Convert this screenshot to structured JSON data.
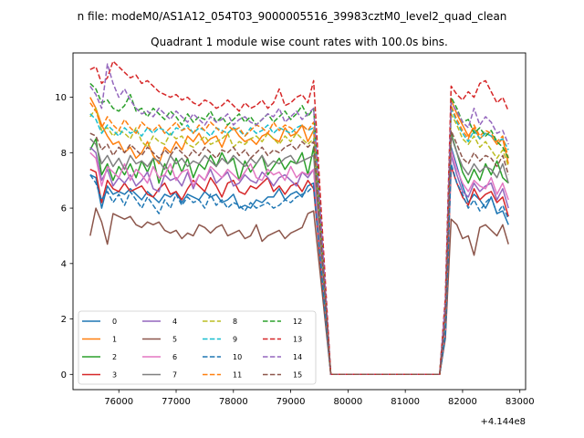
{
  "chart_data": {
    "type": "line",
    "suptitle": "n file: modeM0/AS1A12_054T03_9000005516_39983cztM0_level2_quad_clean",
    "title": "Quadrant 1 module wise count rates with 100.0s bins.",
    "xlabel": "",
    "ylabel": "",
    "offset_label": "+4.144e8",
    "xlim": [
      75200,
      83100
    ],
    "ylim": [
      -0.55,
      11.6
    ],
    "xticks": [
      76000,
      77000,
      78000,
      79000,
      80000,
      81000,
      82000,
      83000
    ],
    "yticks": [
      0,
      2,
      4,
      6,
      8,
      10
    ],
    "grid": false,
    "legend_position": "lower-left",
    "x_start": 75500,
    "x_step": 100,
    "gap_x": [
      79700,
      81600
    ],
    "series_colors": [
      "#1f77b4",
      "#ff7f0e",
      "#2ca02c",
      "#d62728",
      "#9467bd",
      "#8c564b",
      "#e377c2",
      "#7f7f7f",
      "#bcbd22",
      "#17becf",
      "#1f77b4",
      "#ff7f0e",
      "#2ca02c",
      "#d62728",
      "#9467bd",
      "#8c564b"
    ],
    "series": [
      {
        "name": "0",
        "style": "solid",
        "segA": [
          7.2,
          7.1,
          6.0,
          6.8,
          6.5,
          6.6,
          6.5,
          6.7,
          6.5,
          6.3,
          6.6,
          6.4,
          6.2,
          6.5,
          6.4,
          6.6,
          6.2,
          6.5,
          6.4,
          6.3,
          6.6,
          6.4,
          6.5,
          6.2,
          6.3,
          6.5,
          6.0,
          6.1,
          6.0,
          6.3,
          6.2,
          6.4,
          6.4,
          6.7,
          6.3,
          6.5,
          6.6,
          6.4,
          6.8,
          6.9
        ],
        "segB": [
          1.4,
          8.2,
          7.5,
          6.8,
          6.2,
          6.5,
          6.3,
          6.0,
          6.4,
          5.8,
          5.9,
          5.4
        ]
      },
      {
        "name": "1",
        "style": "solid",
        "segA": [
          10.0,
          9.6,
          9.0,
          8.6,
          8.3,
          8.4,
          8.0,
          8.2,
          7.8,
          8.0,
          8.4,
          7.9,
          7.6,
          8.2,
          8.0,
          8.4,
          8.1,
          8.6,
          8.4,
          8.7,
          8.3,
          8.5,
          8.6,
          8.2,
          8.7,
          8.9,
          8.6,
          8.4,
          8.5,
          8.3,
          8.6,
          8.7,
          8.5,
          8.4,
          8.9,
          8.6,
          8.7,
          9.0,
          8.4,
          8.8
        ],
        "segB": [
          2.2,
          9.9,
          9.4,
          9.0,
          8.6,
          8.9,
          8.5,
          8.7,
          8.6,
          8.3,
          8.5,
          7.6
        ]
      },
      {
        "name": "2",
        "style": "solid",
        "segA": [
          8.1,
          8.5,
          7.2,
          7.6,
          7.0,
          7.5,
          7.2,
          7.6,
          7.1,
          7.7,
          7.3,
          7.8,
          6.9,
          7.6,
          7.2,
          7.8,
          7.3,
          7.8,
          7.1,
          7.6,
          7.4,
          7.9,
          7.5,
          8.0,
          7.6,
          7.8,
          7.0,
          7.7,
          7.3,
          7.6,
          7.9,
          7.2,
          7.5,
          7.8,
          7.4,
          7.7,
          7.6,
          8.0,
          7.2,
          8.2
        ],
        "segB": [
          1.8,
          8.7,
          8.0,
          7.3,
          6.9,
          7.4,
          7.0,
          7.6,
          7.2,
          7.7,
          7.1,
          6.9
        ]
      },
      {
        "name": "3",
        "style": "solid",
        "segA": [
          7.4,
          7.3,
          6.2,
          7.0,
          6.7,
          6.6,
          6.9,
          6.6,
          6.7,
          6.8,
          6.5,
          6.4,
          6.7,
          6.9,
          6.5,
          6.6,
          6.3,
          6.7,
          7.0,
          6.8,
          6.6,
          7.1,
          6.8,
          6.4,
          6.9,
          7.0,
          6.6,
          6.5,
          6.8,
          6.7,
          6.9,
          7.1,
          6.6,
          6.8,
          6.5,
          6.8,
          6.9,
          6.6,
          7.0,
          6.7
        ],
        "segB": [
          1.5,
          7.5,
          6.9,
          6.4,
          6.1,
          6.7,
          6.3,
          6.5,
          6.6,
          6.2,
          6.4,
          5.7
        ]
      },
      {
        "name": "4",
        "style": "solid",
        "segA": [
          8.2,
          8.0,
          7.0,
          7.4,
          6.8,
          7.1,
          6.9,
          7.2,
          6.8,
          7.0,
          7.3,
          6.7,
          6.6,
          7.2,
          7.0,
          7.1,
          6.8,
          7.3,
          6.7,
          7.2,
          7.0,
          7.4,
          6.9,
          7.1,
          7.3,
          6.8,
          6.9,
          7.2,
          7.0,
          6.9,
          7.3,
          7.1,
          6.8,
          7.1,
          7.2,
          7.0,
          6.8,
          7.3,
          7.1,
          7.4
        ],
        "segB": [
          1.7,
          7.9,
          7.2,
          6.6,
          6.4,
          6.9,
          6.6,
          6.8,
          6.9,
          6.3,
          6.7,
          6.0
        ]
      },
      {
        "name": "5",
        "style": "solid",
        "segA": [
          5.0,
          6.0,
          5.5,
          4.7,
          5.8,
          5.7,
          5.6,
          5.7,
          5.4,
          5.3,
          5.5,
          5.4,
          5.5,
          5.2,
          5.1,
          5.2,
          4.9,
          5.1,
          5.0,
          5.4,
          5.3,
          5.1,
          5.3,
          5.4,
          5.0,
          5.1,
          5.2,
          4.9,
          5.0,
          5.4,
          4.8,
          5.0,
          5.1,
          5.2,
          4.9,
          5.1,
          5.2,
          5.3,
          5.8,
          5.9
        ],
        "segB": [
          1.3,
          5.6,
          5.4,
          4.9,
          5.0,
          4.3,
          5.3,
          5.4,
          5.2,
          5.0,
          5.4,
          4.7
        ]
      },
      {
        "name": "6",
        "style": "solid",
        "segA": [
          8.0,
          7.8,
          6.8,
          7.5,
          7.3,
          7.1,
          7.6,
          7.0,
          7.4,
          7.2,
          6.9,
          7.5,
          7.1,
          7.2,
          7.6,
          7.0,
          7.3,
          7.4,
          6.8,
          7.2,
          7.0,
          7.5,
          7.3,
          7.1,
          7.4,
          7.2,
          7.0,
          7.3,
          7.6,
          7.1,
          7.0,
          7.4,
          7.2,
          7.3,
          7.0,
          7.5,
          7.1,
          7.3,
          7.2,
          7.4
        ],
        "segB": [
          1.6,
          8.1,
          7.4,
          6.9,
          6.6,
          7.0,
          6.8,
          6.7,
          7.1,
          6.5,
          6.9,
          6.3
        ]
      },
      {
        "name": "7",
        "style": "solid",
        "segA": [
          8.5,
          8.3,
          7.6,
          7.9,
          7.5,
          7.8,
          7.4,
          7.9,
          7.6,
          7.7,
          7.5,
          7.8,
          7.7,
          7.4,
          7.9,
          7.6,
          7.8,
          7.5,
          7.7,
          7.6,
          7.9,
          7.7,
          7.5,
          7.8,
          7.6,
          7.9,
          7.7,
          7.5,
          7.8,
          7.6,
          7.9,
          7.5,
          7.7,
          7.6,
          7.8,
          7.9,
          7.6,
          7.7,
          7.8,
          7.9
        ],
        "segB": [
          1.9,
          8.6,
          8.0,
          7.5,
          7.2,
          7.6,
          7.3,
          7.5,
          7.4,
          7.1,
          7.6,
          6.9
        ]
      },
      {
        "name": "8",
        "style": "dashed",
        "segA": [
          9.3,
          9.6,
          8.8,
          8.9,
          8.6,
          8.8,
          8.7,
          8.5,
          8.9,
          8.4,
          8.2,
          8.6,
          8.4,
          8.3,
          8.7,
          8.5,
          8.6,
          8.3,
          8.2,
          8.4,
          8.6,
          8.3,
          8.4,
          8.5,
          8.7,
          8.2,
          8.4,
          8.3,
          8.5,
          8.6,
          8.4,
          8.7,
          8.5,
          8.3,
          8.6,
          8.4,
          8.7,
          8.5,
          8.3,
          8.5
        ],
        "segB": [
          2.4,
          9.4,
          9.0,
          8.5,
          8.3,
          8.6,
          8.2,
          8.4,
          8.1,
          7.8,
          8.1,
          7.5
        ]
      },
      {
        "name": "9",
        "style": "dashed",
        "segA": [
          9.4,
          9.2,
          8.7,
          9.0,
          8.8,
          8.6,
          8.9,
          8.7,
          8.8,
          8.6,
          8.9,
          8.7,
          8.9,
          8.8,
          8.6,
          8.9,
          8.8,
          9.0,
          8.7,
          8.9,
          8.8,
          8.6,
          8.9,
          8.8,
          8.7,
          8.9,
          8.8,
          8.6,
          8.9,
          8.7,
          8.8,
          9.0,
          8.7,
          8.9,
          8.8,
          8.7,
          8.9,
          9.0,
          8.8,
          8.9
        ],
        "segB": [
          2.3,
          9.6,
          9.1,
          8.7,
          8.4,
          8.8,
          8.5,
          8.7,
          8.6,
          8.4,
          8.5,
          8.1
        ]
      },
      {
        "name": "10",
        "style": "dashed",
        "segA": [
          7.2,
          6.9,
          6.3,
          6.6,
          6.2,
          6.5,
          6.1,
          6.6,
          6.3,
          6.0,
          6.4,
          6.1,
          5.8,
          6.3,
          6.0,
          6.5,
          6.1,
          6.4,
          6.2,
          6.3,
          6.0,
          6.5,
          6.1,
          6.3,
          6.0,
          6.2,
          6.1,
          5.9,
          6.2,
          6.0,
          6.1,
          6.2,
          6.0,
          6.1,
          6.3,
          6.2,
          6.4,
          6.5,
          6.6,
          6.8
        ],
        "segB": [
          1.4,
          7.6,
          6.9,
          6.5,
          6.0,
          6.3,
          5.9,
          6.2,
          6.4,
          5.8,
          6.1,
          5.6
        ]
      },
      {
        "name": "11",
        "style": "dashed",
        "segA": [
          9.8,
          9.5,
          8.9,
          9.3,
          9.0,
          8.8,
          9.2,
          8.9,
          8.7,
          9.1,
          8.9,
          8.8,
          9.0,
          8.7,
          8.9,
          9.1,
          8.8,
          8.9,
          8.7,
          9.0,
          8.8,
          9.1,
          8.9,
          8.7,
          9.0,
          8.8,
          8.9,
          8.6,
          8.8,
          9.0,
          8.9,
          8.7,
          9.1,
          8.8,
          9.0,
          8.9,
          8.7,
          9.0,
          8.8,
          9.1
        ],
        "segB": [
          2.5,
          9.7,
          9.2,
          8.8,
          8.5,
          9.0,
          8.6,
          8.8,
          8.7,
          8.4,
          8.6,
          7.8
        ]
      },
      {
        "name": "12",
        "style": "dashed",
        "segA": [
          10.5,
          10.3,
          9.8,
          9.9,
          9.6,
          9.5,
          9.7,
          10.1,
          9.5,
          9.6,
          9.3,
          9.6,
          9.4,
          9.2,
          9.5,
          9.3,
          9.0,
          9.4,
          9.1,
          9.3,
          9.2,
          9.5,
          9.1,
          9.3,
          9.0,
          9.2,
          9.4,
          9.1,
          9.3,
          9.0,
          9.2,
          9.4,
          9.1,
          9.3,
          9.5,
          9.2,
          9.4,
          9.7,
          9.3,
          9.6
        ],
        "segB": [
          2.7,
          10.0,
          9.6,
          9.1,
          9.2,
          8.7,
          8.9,
          8.6,
          8.8,
          8.4,
          8.2,
          7.8
        ]
      },
      {
        "name": "13",
        "style": "dashed",
        "segA": [
          11.0,
          11.1,
          10.5,
          10.7,
          11.3,
          11.1,
          10.9,
          10.7,
          10.8,
          10.5,
          10.6,
          10.4,
          10.2,
          10.1,
          10.0,
          10.1,
          9.9,
          10.0,
          9.8,
          9.7,
          9.9,
          9.8,
          9.6,
          9.7,
          9.9,
          9.7,
          9.5,
          9.8,
          9.6,
          9.7,
          9.9,
          9.6,
          9.8,
          10.3,
          9.7,
          9.8,
          10.0,
          10.1,
          9.8,
          10.6
        ],
        "segB": [
          2.8,
          10.4,
          10.1,
          9.9,
          10.2,
          10.0,
          10.5,
          10.6,
          10.2,
          9.8,
          10.0,
          9.5
        ]
      },
      {
        "name": "14",
        "style": "dashed",
        "segA": [
          10.4,
          10.1,
          9.6,
          11.2,
          10.5,
          10.0,
          10.3,
          9.9,
          9.6,
          9.4,
          9.5,
          9.3,
          9.6,
          9.4,
          9.2,
          9.5,
          9.3,
          9.1,
          9.4,
          9.2,
          9.0,
          9.3,
          9.1,
          9.2,
          9.4,
          9.0,
          9.2,
          9.3,
          9.1,
          9.0,
          9.2,
          9.4,
          9.3,
          9.6,
          9.1,
          9.3,
          9.5,
          9.2,
          9.4,
          9.6
        ],
        "segB": [
          2.6,
          9.8,
          9.5,
          9.1,
          8.9,
          9.6,
          9.0,
          9.3,
          9.1,
          8.7,
          8.8,
          8.3
        ]
      },
      {
        "name": "15",
        "style": "dashed",
        "segA": [
          8.7,
          8.6,
          8.1,
          8.3,
          7.9,
          8.2,
          8.0,
          8.3,
          8.1,
          7.9,
          8.2,
          8.0,
          7.8,
          8.1,
          7.9,
          8.2,
          8.0,
          7.8,
          8.1,
          7.9,
          8.2,
          8.0,
          7.8,
          8.1,
          8.0,
          8.2,
          7.9,
          8.1,
          7.8,
          8.0,
          8.2,
          7.9,
          8.1,
          8.0,
          8.2,
          8.3,
          8.1,
          8.4,
          8.2,
          8.4
        ],
        "segB": [
          2.0,
          8.8,
          8.3,
          7.8,
          7.6,
          8.0,
          7.7,
          7.9,
          7.8,
          7.5,
          7.9,
          7.2
        ]
      }
    ]
  }
}
